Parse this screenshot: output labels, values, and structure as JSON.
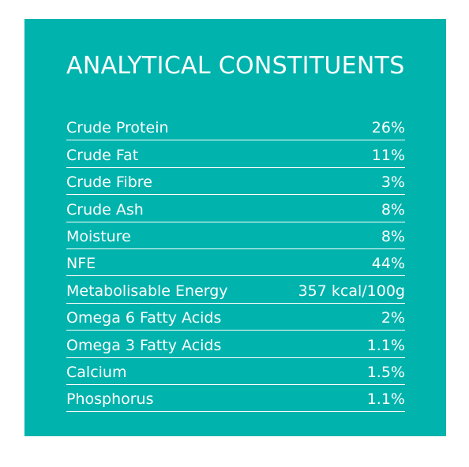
{
  "title": "ANALYTICAL CONSTITUENTS",
  "rows": [
    {
      "label": "Crude Protein",
      "value": "26%"
    },
    {
      "label": "Crude Fat",
      "value": "11%"
    },
    {
      "label": "Crude Fibre",
      "value": "3%"
    },
    {
      "label": "Crude Ash",
      "value": "8%"
    },
    {
      "label": "Moisture",
      "value": "8%"
    },
    {
      "label": "NFE",
      "value": "44%"
    },
    {
      "label": "Metabolisable Energy",
      "value": "357 kcal/100g"
    },
    {
      "label": "Omega 6 Fatty Acids",
      "value": "2%"
    },
    {
      "label": "Omega 3 Fatty Acids",
      "value": "1.1%"
    },
    {
      "label": "Calcium",
      "value": "1.5%"
    },
    {
      "label": "Phosphorus",
      "value": "1.1%"
    }
  ],
  "colors": {
    "panel_background": "#00b3ad",
    "text": "#ffffff",
    "page_background": "#ffffff"
  }
}
